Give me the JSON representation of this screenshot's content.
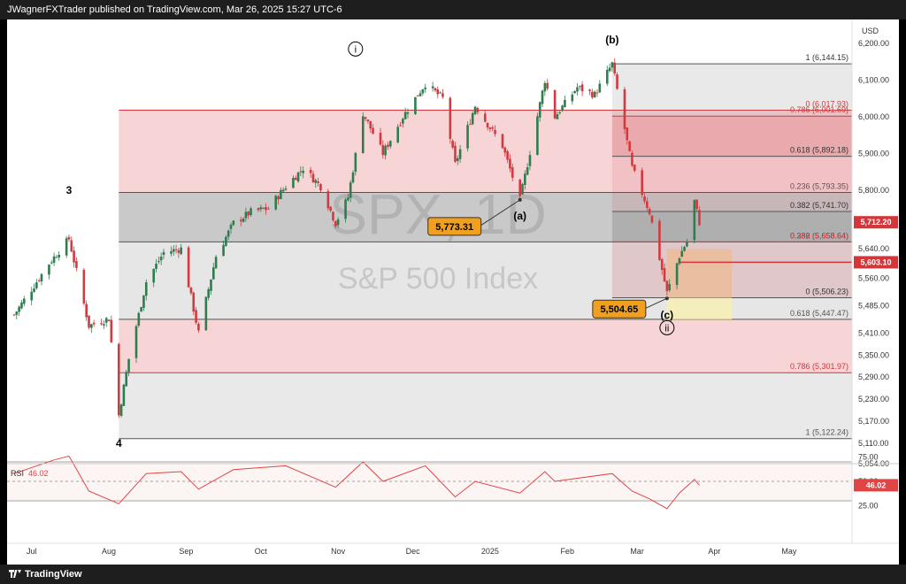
{
  "header": {
    "publisher": "JWagnerFXTrader published on TradingView.com, Mar 26, 2025 15:27 UTC-6"
  },
  "footer": {
    "brand": "TradingView"
  },
  "chart_data": {
    "type": "candlestick",
    "watermark": {
      "symbol": "SPX, 1D",
      "name": "S&P 500 Index"
    },
    "currency": "USD",
    "x_ticks": [
      "Jul",
      "Aug",
      "Sep",
      "Oct",
      "Nov",
      "Dec",
      "2025",
      "Feb",
      "Mar",
      "Apr",
      "May"
    ],
    "y_ticks": [
      "6,200.00",
      "6,100.00",
      "6,000.00",
      "5,900.00",
      "5,800.00",
      "5,640.00",
      "5,560.00",
      "5,485.00",
      "5,410.00",
      "5,350.00",
      "5,290.00",
      "5,230.00",
      "5,170.00",
      "5,110.00",
      "5,054.00"
    ],
    "price_points": [
      [
        "2024-06-24",
        5460
      ],
      [
        "2024-07-01",
        5530
      ],
      [
        "2024-07-08",
        5600
      ],
      [
        "2024-07-16",
        5667
      ],
      [
        "2024-07-24",
        5430
      ],
      [
        "2024-08-01",
        5450
      ],
      [
        "2024-08-05",
        5186
      ],
      [
        "2024-08-09",
        5340
      ],
      [
        "2024-08-16",
        5550
      ],
      [
        "2024-08-23",
        5630
      ],
      [
        "2024-08-30",
        5640
      ],
      [
        "2024-09-06",
        5410
      ],
      [
        "2024-09-13",
        5620
      ],
      [
        "2024-09-20",
        5710
      ],
      [
        "2024-09-27",
        5740
      ],
      [
        "2024-10-04",
        5750
      ],
      [
        "2024-10-11",
        5810
      ],
      [
        "2024-10-18",
        5860
      ],
      [
        "2024-10-25",
        5810
      ],
      [
        "2024-10-31",
        5710
      ],
      [
        "2024-11-05",
        5780
      ],
      [
        "2024-11-11",
        6010
      ],
      [
        "2024-11-19",
        5900
      ],
      [
        "2024-11-27",
        6000
      ],
      [
        "2024-12-06",
        6090
      ],
      [
        "2024-12-13",
        6050
      ],
      [
        "2024-12-18",
        5870
      ],
      [
        "2024-12-26",
        6030
      ],
      [
        "2025-01-06",
        5920
      ],
      [
        "2025-01-13",
        5773
      ],
      [
        "2025-01-23",
        6100
      ],
      [
        "2025-01-27",
        6000
      ],
      [
        "2025-02-05",
        6080
      ],
      [
        "2025-02-12",
        6060
      ],
      [
        "2025-02-19",
        6144
      ],
      [
        "2025-02-27",
        5860
      ],
      [
        "2025-03-06",
        5740
      ],
      [
        "2025-03-13",
        5520
      ],
      [
        "2025-03-18",
        5620
      ],
      [
        "2025-03-21",
        5660
      ],
      [
        "2025-03-24",
        5770
      ],
      [
        "2025-03-26",
        5712
      ]
    ],
    "wave_labels": [
      {
        "text": "3",
        "date": "2024-07-16",
        "price": 5790
      },
      {
        "text": "4",
        "date": "2024-08-05",
        "price": 5100
      },
      {
        "text": "i",
        "date": "2024-11-08",
        "price": 6175,
        "circled": true
      },
      {
        "text": "(a)",
        "date": "2025-01-13",
        "price": 5720
      },
      {
        "text": "(b)",
        "date": "2025-02-19",
        "price": 6200
      },
      {
        "text": "(c)",
        "date": "2025-03-13",
        "price": 5450
      },
      {
        "text": "ii",
        "date": "2025-03-13",
        "price": 5415,
        "circled": true
      }
    ],
    "callouts": [
      {
        "label": "5,773.31",
        "date": "2025-01-13",
        "price": 5773.31
      },
      {
        "label": "5,504.65",
        "date": "2025-03-13",
        "price": 5504.65
      }
    ],
    "fib_large": [
      {
        "label": "1 (5,122.24)",
        "price": 5122.24
      },
      {
        "label": "0.786 (5,301.97)",
        "price": 5301.97
      },
      {
        "label": "0.618 (5,447.47)",
        "price": 5447.47
      },
      {
        "label": "0.382 (5,658.64)",
        "price": 5658.64
      },
      {
        "label": "0.236 (5,793.35)",
        "price": 5793.35
      },
      {
        "label": "0 (6,017.93)",
        "price": 6017.93
      }
    ],
    "fib_small": [
      {
        "label": "0 (5,506.23)",
        "price": 5506.23
      },
      {
        "label": "0.236 (5,658.64)",
        "price": 5658.64
      },
      {
        "label": "0.382 (5,741.70)",
        "price": 5741.7
      },
      {
        "label": "0.618 (5,892.18)",
        "price": 5892.18
      },
      {
        "label": "0.786 (6,001.69)",
        "price": 6001.69
      },
      {
        "label": "1 (6,144.15)",
        "price": 6144.15
      }
    ],
    "price_tags": [
      {
        "label": "5,712.20",
        "price": 5712.2
      },
      {
        "label": "5,603.10",
        "price": 5603.1
      }
    ],
    "rsi": {
      "label": "RSI",
      "value": "46.02",
      "ticks": [
        "75.00",
        "50.00",
        "25.00"
      ],
      "upper": 70,
      "mid": 50,
      "lower": 30,
      "points": [
        [
          "2024-06-24",
          58
        ],
        [
          "2024-07-10",
          72
        ],
        [
          "2024-07-16",
          76
        ],
        [
          "2024-07-24",
          40
        ],
        [
          "2024-08-05",
          27
        ],
        [
          "2024-08-16",
          58
        ],
        [
          "2024-08-30",
          60
        ],
        [
          "2024-09-06",
          42
        ],
        [
          "2024-09-20",
          62
        ],
        [
          "2024-10-11",
          66
        ],
        [
          "2024-10-31",
          44
        ],
        [
          "2024-11-11",
          70
        ],
        [
          "2024-11-19",
          50
        ],
        [
          "2024-12-06",
          66
        ],
        [
          "2024-12-18",
          34
        ],
        [
          "2024-12-26",
          50
        ],
        [
          "2025-01-13",
          38
        ],
        [
          "2025-01-23",
          60
        ],
        [
          "2025-01-27",
          50
        ],
        [
          "2025-02-19",
          58
        ],
        [
          "2025-02-27",
          40
        ],
        [
          "2025-03-06",
          32
        ],
        [
          "2025-03-13",
          22
        ],
        [
          "2025-03-18",
          38
        ],
        [
          "2025-03-24",
          52
        ],
        [
          "2025-03-26",
          46
        ]
      ]
    }
  }
}
